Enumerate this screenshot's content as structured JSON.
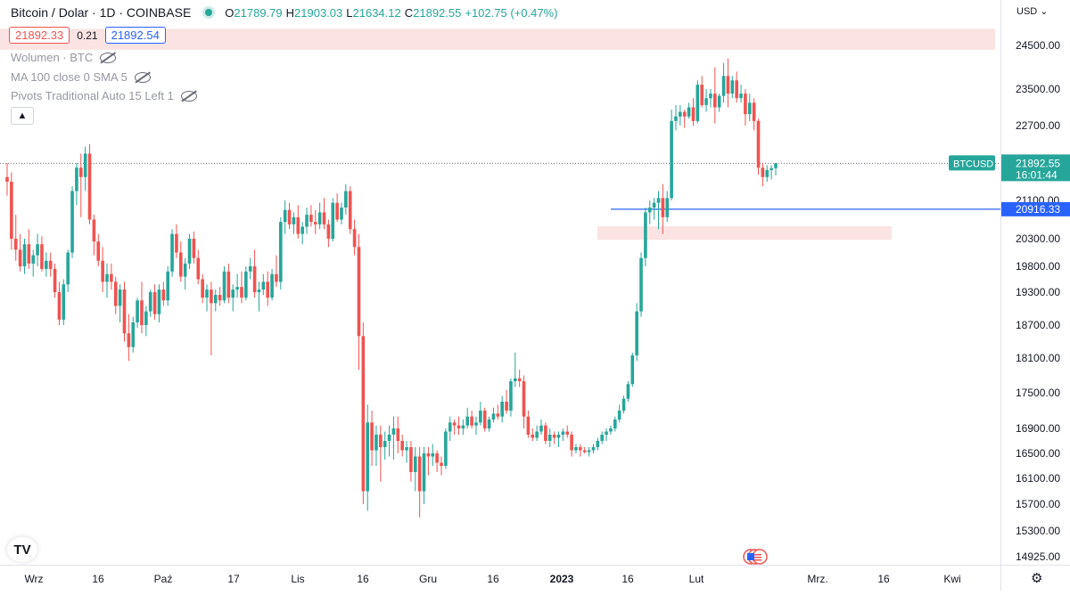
{
  "legend": {
    "symbol_title": "Bitcoin / Dolar · 1D · COINBASE",
    "open_label": "O",
    "open": "21789.79",
    "high_label": "H",
    "high": "21903.03",
    "low_label": "L",
    "low": "21634.12",
    "close_label": "C",
    "close": "21892.55",
    "change": "+102.75 (+0.47%)"
  },
  "bid_ask": {
    "bid": "21892.33",
    "spread": "0.21",
    "ask": "21892.54"
  },
  "indicators": [
    {
      "label": "Wolumen · BTC"
    },
    {
      "label": "MA 100 close 0 SMA 5"
    },
    {
      "label": "Pivots Traditional Auto 15 Left 1"
    }
  ],
  "collapse_icon": "chevron-up-icon",
  "currency": "USD",
  "price_axis": {
    "ticks": [
      "24500.00",
      "23500.00",
      "22700.00",
      "21100.00",
      "20300.00",
      "19800.00",
      "19300.00",
      "18700.00",
      "18100.00",
      "17500.00",
      "16900.00",
      "16500.00",
      "16100.00",
      "15700.00",
      "15300.00",
      "14925.00"
    ]
  },
  "time_axis": {
    "labels": [
      "Wrz",
      "16",
      "Paź",
      "17",
      "Lis",
      "16",
      "Gru",
      "16",
      "2023",
      "16",
      "Lut",
      "Mrz.",
      "16",
      "Kwi"
    ]
  },
  "markers": {
    "symbol_tag": "BTCUSD",
    "last_price": "21892.55",
    "countdown": "16:01:44",
    "line_price": "20916.33"
  },
  "colors": {
    "up": "#26a69a",
    "down": "#ef5350",
    "line": "#2962ff",
    "zone": "#fbe3e3"
  },
  "chart_data": {
    "type": "candlestick",
    "symbol": "BTCUSD",
    "interval": "1D",
    "exchange": "COINBASE",
    "ylim": [
      14925,
      24900
    ],
    "horizontal_line": 20916.33,
    "last_price": 21892.55,
    "zones": [
      {
        "from_price": 24400,
        "to_price": 24880,
        "span": "full width"
      },
      {
        "from_price": 20280,
        "to_price": 20560,
        "span": "mid Jan to mid Feb 2023"
      }
    ],
    "candles": [
      [
        21600,
        21900,
        21200,
        21500
      ],
      [
        21500,
        21700,
        20100,
        20300
      ],
      [
        20300,
        20800,
        19900,
        20100
      ],
      [
        20100,
        20400,
        19700,
        19800
      ],
      [
        19800,
        20300,
        19650,
        20200
      ],
      [
        20200,
        20500,
        19750,
        19850
      ],
      [
        19850,
        20100,
        19600,
        20000
      ],
      [
        20000,
        20400,
        19800,
        20200
      ],
      [
        20200,
        20350,
        19700,
        19750
      ],
      [
        19750,
        20050,
        19600,
        19900
      ],
      [
        19900,
        20050,
        19600,
        19750
      ],
      [
        19750,
        19850,
        19200,
        19300
      ],
      [
        19300,
        19500,
        18700,
        18800
      ],
      [
        18800,
        19550,
        18700,
        19450
      ],
      [
        19450,
        20100,
        19300,
        20050
      ],
      [
        20050,
        21400,
        19950,
        21300
      ],
      [
        21300,
        21900,
        21000,
        21800
      ],
      [
        21800,
        22100,
        20750,
        21600
      ],
      [
        21600,
        22250,
        21300,
        22100
      ],
      [
        22100,
        22300,
        20600,
        20700
      ],
      [
        20700,
        20800,
        20000,
        20250
      ],
      [
        20250,
        20400,
        19800,
        19900
      ],
      [
        19900,
        20150,
        19300,
        19500
      ],
      [
        19500,
        19850,
        19200,
        19650
      ],
      [
        19650,
        19850,
        19350,
        19500
      ],
      [
        19500,
        19600,
        18900,
        19050
      ],
      [
        19050,
        19450,
        18750,
        19350
      ],
      [
        19350,
        19500,
        18400,
        18550
      ],
      [
        18550,
        18900,
        18050,
        18300
      ],
      [
        18300,
        18850,
        18200,
        18750
      ],
      [
        18750,
        19200,
        18650,
        19150
      ],
      [
        19150,
        19500,
        18550,
        18700
      ],
      [
        18700,
        19050,
        18500,
        18950
      ],
      [
        18950,
        19350,
        18850,
        19300
      ],
      [
        19300,
        19450,
        18800,
        18900
      ],
      [
        18900,
        19450,
        18750,
        19350
      ],
      [
        19350,
        19500,
        19050,
        19150
      ],
      [
        19150,
        19800,
        19050,
        19700
      ],
      [
        19700,
        20500,
        19600,
        20400
      ],
      [
        20400,
        20600,
        19950,
        20050
      ],
      [
        20050,
        20250,
        19500,
        19600
      ],
      [
        19600,
        19950,
        19350,
        19850
      ],
      [
        19850,
        20400,
        19750,
        20300
      ],
      [
        20300,
        20450,
        19850,
        19950
      ],
      [
        19950,
        20100,
        19450,
        19550
      ],
      [
        19550,
        19650,
        19100,
        19200
      ],
      [
        19200,
        19450,
        18950,
        19350
      ],
      [
        19350,
        19500,
        18150,
        19100
      ],
      [
        19100,
        19350,
        18950,
        19250
      ],
      [
        19250,
        19400,
        19050,
        19150
      ],
      [
        19150,
        19800,
        19100,
        19700
      ],
      [
        19700,
        19850,
        19100,
        19200
      ],
      [
        19200,
        19450,
        18950,
        19350
      ],
      [
        19350,
        19650,
        19200,
        19400
      ],
      [
        19400,
        19700,
        19100,
        19200
      ],
      [
        19200,
        19800,
        19150,
        19700
      ],
      [
        19700,
        19950,
        19550,
        19800
      ],
      [
        19800,
        20100,
        19200,
        19300
      ],
      [
        19300,
        19500,
        18950,
        19350
      ],
      [
        19350,
        19650,
        19250,
        19500
      ],
      [
        19500,
        19700,
        19050,
        19200
      ],
      [
        19200,
        19750,
        19150,
        19650
      ],
      [
        19650,
        20000,
        19400,
        19500
      ],
      [
        19500,
        20750,
        19350,
        20650
      ],
      [
        20650,
        21100,
        20400,
        20900
      ],
      [
        20900,
        21050,
        20500,
        20600
      ],
      [
        20600,
        20850,
        20400,
        20750
      ],
      [
        20750,
        21000,
        20300,
        20400
      ],
      [
        20400,
        20650,
        20200,
        20550
      ],
      [
        20550,
        20950,
        20400,
        20800
      ],
      [
        20800,
        21000,
        20550,
        20650
      ],
      [
        20650,
        20900,
        20400,
        20600
      ],
      [
        20600,
        21050,
        20500,
        20850
      ],
      [
        20850,
        21150,
        20500,
        20600
      ],
      [
        20600,
        20700,
        20150,
        20300
      ],
      [
        20300,
        21150,
        20250,
        21050
      ],
      [
        21050,
        21250,
        20650,
        20700
      ],
      [
        20700,
        21050,
        20600,
        20950
      ],
      [
        20950,
        21450,
        20800,
        21300
      ],
      [
        21300,
        21400,
        20400,
        20500
      ],
      [
        20500,
        20700,
        20000,
        20150
      ],
      [
        20150,
        20400,
        17900,
        18500
      ],
      [
        18500,
        18750,
        15700,
        15900
      ],
      [
        15900,
        17300,
        15600,
        17000
      ],
      [
        17000,
        17200,
        16300,
        16550
      ],
      [
        16550,
        16950,
        16300,
        16800
      ],
      [
        16800,
        16950,
        16050,
        16600
      ],
      [
        16600,
        16850,
        16400,
        16700
      ],
      [
        16700,
        16950,
        16450,
        16800
      ],
      [
        16800,
        17100,
        16400,
        16900
      ],
      [
        16900,
        17100,
        16500,
        16700
      ],
      [
        16700,
        16800,
        16450,
        16550
      ],
      [
        16550,
        16700,
        16350,
        16600
      ],
      [
        16600,
        16700,
        16050,
        16200
      ],
      [
        16200,
        16600,
        15900,
        16450
      ],
      [
        16450,
        16600,
        15500,
        15900
      ],
      [
        15900,
        16600,
        15700,
        16500
      ],
      [
        16500,
        16600,
        16150,
        16450
      ],
      [
        16450,
        16650,
        16300,
        16500
      ],
      [
        16500,
        16550,
        16200,
        16350
      ],
      [
        16350,
        16450,
        16150,
        16300
      ],
      [
        16300,
        16900,
        16250,
        16850
      ],
      [
        16850,
        17100,
        16700,
        17000
      ],
      [
        17000,
        17050,
        16800,
        16950
      ],
      [
        16950,
        17100,
        16800,
        16900
      ],
      [
        16900,
        17050,
        16800,
        16950
      ],
      [
        16950,
        17250,
        16900,
        17100
      ],
      [
        17100,
        17200,
        16900,
        16950
      ],
      [
        16950,
        17100,
        16800,
        17000
      ],
      [
        17000,
        17350,
        16950,
        17200
      ],
      [
        17200,
        17250,
        16850,
        16900
      ],
      [
        16900,
        17100,
        16850,
        17050
      ],
      [
        17050,
        17250,
        17000,
        17150
      ],
      [
        17150,
        17300,
        17050,
        17100
      ],
      [
        17100,
        17450,
        17000,
        17350
      ],
      [
        17350,
        17550,
        17150,
        17200
      ],
      [
        17200,
        17750,
        17100,
        17700
      ],
      [
        17700,
        18200,
        17600,
        17750
      ],
      [
        17750,
        17900,
        17600,
        17700
      ],
      [
        17700,
        17800,
        16900,
        17100
      ],
      [
        17100,
        17200,
        16750,
        16800
      ],
      [
        16800,
        16900,
        16700,
        16750
      ],
      [
        16750,
        16950,
        16700,
        16850
      ],
      [
        16850,
        17050,
        16800,
        16950
      ],
      [
        16950,
        17000,
        16650,
        16700
      ],
      [
        16700,
        16900,
        16600,
        16800
      ],
      [
        16800,
        16850,
        16650,
        16750
      ],
      [
        16750,
        16850,
        16600,
        16800
      ],
      [
        16800,
        16900,
        16700,
        16850
      ],
      [
        16850,
        16950,
        16750,
        16800
      ],
      [
        16800,
        16850,
        16450,
        16550
      ],
      [
        16550,
        16650,
        16500,
        16600
      ],
      [
        16600,
        16650,
        16450,
        16550
      ],
      [
        16550,
        16600,
        16500,
        16520
      ],
      [
        16520,
        16600,
        16450,
        16550
      ],
      [
        16550,
        16650,
        16500,
        16600
      ],
      [
        16600,
        16750,
        16550,
        16700
      ],
      [
        16700,
        16850,
        16650,
        16800
      ],
      [
        16800,
        16900,
        16700,
        16850
      ],
      [
        16850,
        16950,
        16800,
        16900
      ],
      [
        16900,
        17100,
        16850,
        17050
      ],
      [
        17050,
        17300,
        17000,
        17200
      ],
      [
        17200,
        17450,
        17150,
        17400
      ],
      [
        17400,
        17700,
        17350,
        17650
      ],
      [
        17650,
        18200,
        17600,
        18150
      ],
      [
        18150,
        19100,
        18050,
        18950
      ],
      [
        18950,
        20050,
        18850,
        19950
      ],
      [
        19950,
        20950,
        19800,
        20850
      ],
      [
        20850,
        21100,
        20600,
        20950
      ],
      [
        20950,
        21150,
        20700,
        21050
      ],
      [
        21050,
        21300,
        20500,
        21150
      ],
      [
        21150,
        21450,
        20400,
        20750
      ],
      [
        20750,
        21300,
        20650,
        21150
      ],
      [
        21150,
        23050,
        21100,
        22800
      ],
      [
        22800,
        23150,
        22600,
        22900
      ],
      [
        22900,
        23150,
        22700,
        23000
      ],
      [
        23000,
        23050,
        22650,
        22900
      ],
      [
        22900,
        23200,
        22850,
        23100
      ],
      [
        23100,
        23300,
        22700,
        22800
      ],
      [
        22800,
        23700,
        22750,
        23600
      ],
      [
        23600,
        23800,
        23100,
        23150
      ],
      [
        23150,
        23500,
        23000,
        23300
      ],
      [
        23300,
        23500,
        23100,
        23400
      ],
      [
        23400,
        24000,
        22750,
        23100
      ],
      [
        23100,
        23400,
        23000,
        23350
      ],
      [
        23350,
        24100,
        23200,
        23800
      ],
      [
        23800,
        24200,
        23100,
        23400
      ],
      [
        23400,
        23800,
        23300,
        23700
      ],
      [
        23700,
        23900,
        23200,
        23300
      ],
      [
        23300,
        23600,
        23200,
        23400
      ],
      [
        23400,
        23500,
        22700,
        22950
      ],
      [
        22950,
        23400,
        22800,
        23200
      ],
      [
        23200,
        23300,
        22600,
        22800
      ],
      [
        22800,
        22850,
        21650,
        21800
      ],
      [
        21800,
        21900,
        21400,
        21600
      ],
      [
        21600,
        21850,
        21500,
        21750
      ],
      [
        21750,
        21850,
        21550,
        21790
      ],
      [
        21789.79,
        21903.03,
        21634.12,
        21892.55
      ]
    ]
  }
}
